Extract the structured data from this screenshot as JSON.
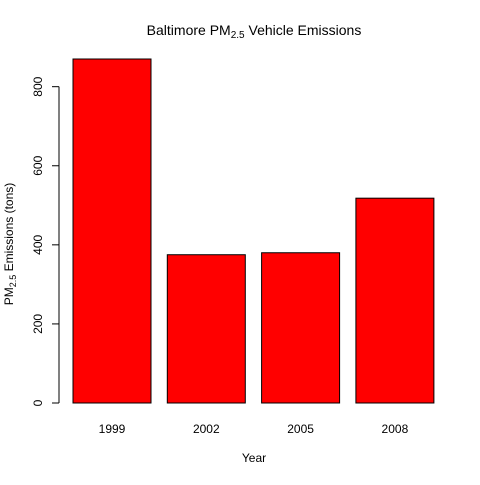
{
  "chart_data": {
    "type": "bar",
    "title_main": "Baltimore PM",
    "title_sub": "2.5",
    "title_rest": " Vehicle Emissions",
    "xlabel": "Year",
    "ylabel_main": "PM",
    "ylabel_sub": "2.5",
    "ylabel_rest": " Emissions (tons)",
    "categories": [
      "1999",
      "2002",
      "2005",
      "2008"
    ],
    "values": [
      870,
      375,
      380,
      518
    ],
    "ylim": [
      0,
      870
    ],
    "yticks": [
      0,
      200,
      400,
      600,
      800
    ],
    "bar_color": "#ff0000",
    "grid": false,
    "legend": "none"
  }
}
